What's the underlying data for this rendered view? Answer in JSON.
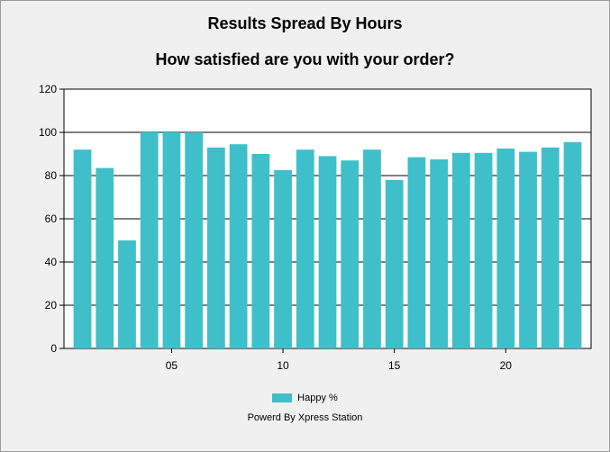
{
  "chart_data": {
    "type": "bar",
    "title": "Results Spread By Hours",
    "subtitle": "How satisfied are you with your order?",
    "x": [
      1,
      2,
      3,
      4,
      5,
      6,
      7,
      8,
      9,
      10,
      11,
      12,
      13,
      14,
      15,
      16,
      17,
      18,
      19,
      20,
      21,
      22,
      23
    ],
    "x_tick_labels": [
      {
        "value": 5,
        "label": "05"
      },
      {
        "value": 10,
        "label": "10"
      },
      {
        "value": 15,
        "label": "15"
      },
      {
        "value": 20,
        "label": "20"
      }
    ],
    "series": [
      {
        "name": "Happy %",
        "color": "#3fbfca",
        "values": [
          92,
          83.5,
          50,
          100,
          100,
          100,
          93,
          94.5,
          90,
          82.5,
          92,
          89,
          87,
          92,
          78,
          88.5,
          87.5,
          90.5,
          90.5,
          92.5,
          91,
          93,
          95.5
        ]
      }
    ],
    "ylim": [
      0,
      120
    ],
    "y_ticks": [
      0,
      20,
      40,
      60,
      80,
      100,
      120
    ],
    "grid": "horizontal",
    "legend_position": "bottom"
  },
  "footer": {
    "powered_by": "Powerd By Xpress Station"
  }
}
